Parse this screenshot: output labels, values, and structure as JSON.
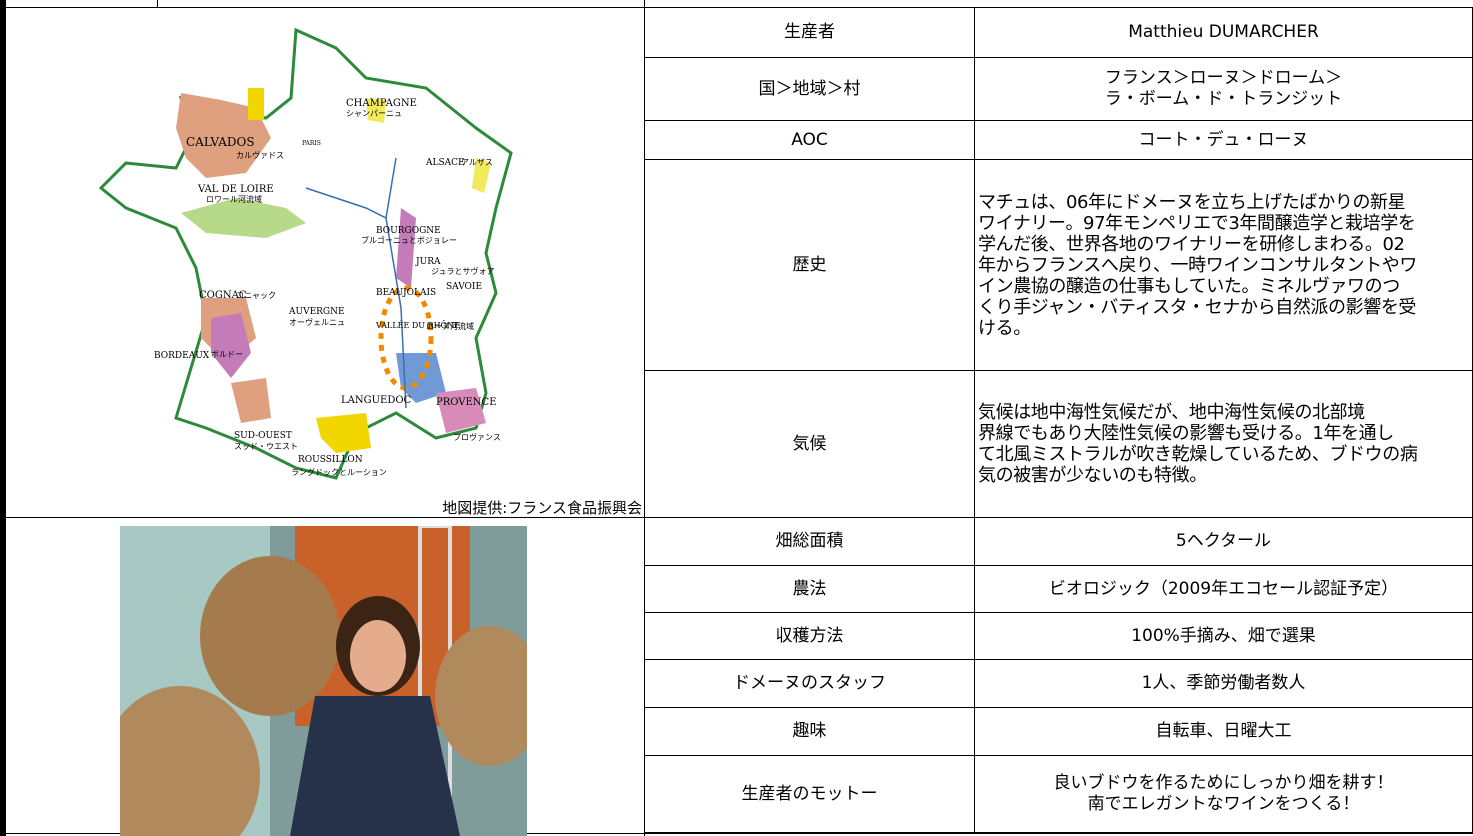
{
  "map": {
    "labels": [
      "CHAMPAGNE",
      "シャンパーニュ",
      "CALVADOS",
      "カルヴァドス",
      "PARIS",
      "ALSACE",
      "アルザス",
      "VAL DE LOIRE",
      "ロワール河流域",
      "BOURGOGNE",
      "ブルゴーニュとボジョレー",
      "JURA",
      "ジュラとサヴォア",
      "SAVOIE",
      "BEAUJOLAIS",
      "COGNAC",
      "コニャック",
      "AUVERGNE",
      "オーヴェルニュ",
      "VALLÉE DU RHÔNE",
      "ローヌ河流域",
      "BORDEAUX",
      "ボルドー",
      "LANGUEDOC",
      "PROVENCE",
      "プロヴァンス",
      "SUD-OUEST",
      "スッド・ウエスト",
      "ROUSSILLON",
      "ラングドックとルーション"
    ],
    "credit": "地図提供:フランス食品振興会"
  },
  "profile": {
    "rows": [
      {
        "label": "生産者",
        "value": [
          "Matthieu DUMARCHER"
        ]
      },
      {
        "label": "国＞地域＞村",
        "value": [
          "フランス＞ローヌ＞ドローム＞",
          "ラ・ボーム・ド・トランジット"
        ]
      },
      {
        "label": "AOC",
        "value": [
          "コート・デュ・ローヌ"
        ]
      },
      {
        "label": "歴史",
        "value": [
          "マチュは、06年にドメーヌを立ち上げたばかりの新星",
          "ワイナリー。97年モンペリエで3年間醸造学と栽培学を",
          "学んだ後、世界各地のワイナリーを研修しまわる。02",
          "年からフランスへ戻り、一時ワインコンサルタントやワ",
          "イン農協の醸造の仕事もしていた。ミネルヴァワのつ",
          "くり手ジャン・バティスタ・セナから自然派の影響を受",
          "ける。"
        ]
      },
      {
        "label": "気候",
        "value": [
          "気候は地中海性気候だが、地中海性気候の北部境",
          "界線でもあり大陸性気候の影響も受ける。1年を通し",
          "て北風ミストラルが吹き乾燥しているため、ブドウの病",
          "気の被害が少ないのも特徴。"
        ]
      },
      {
        "label": "畑総面積",
        "value": [
          "5ヘクタール"
        ]
      },
      {
        "label": "農法",
        "value": [
          "ビオロジック（2009年エコセール認証予定）"
        ]
      },
      {
        "label": "収穫方法",
        "value": [
          "100%手摘み、畑で選果"
        ]
      },
      {
        "label": "ドメーヌのスタッフ",
        "value": [
          "1人、季節労働者数人"
        ]
      },
      {
        "label": "趣味",
        "value": [
          "自転車、日曜大工"
        ]
      },
      {
        "label": "生産者のモットー",
        "value": [
          "良いブドウを作るためにしっかり畑を耕す！",
          "南でエレガントなワインをつくる！"
        ]
      }
    ]
  }
}
